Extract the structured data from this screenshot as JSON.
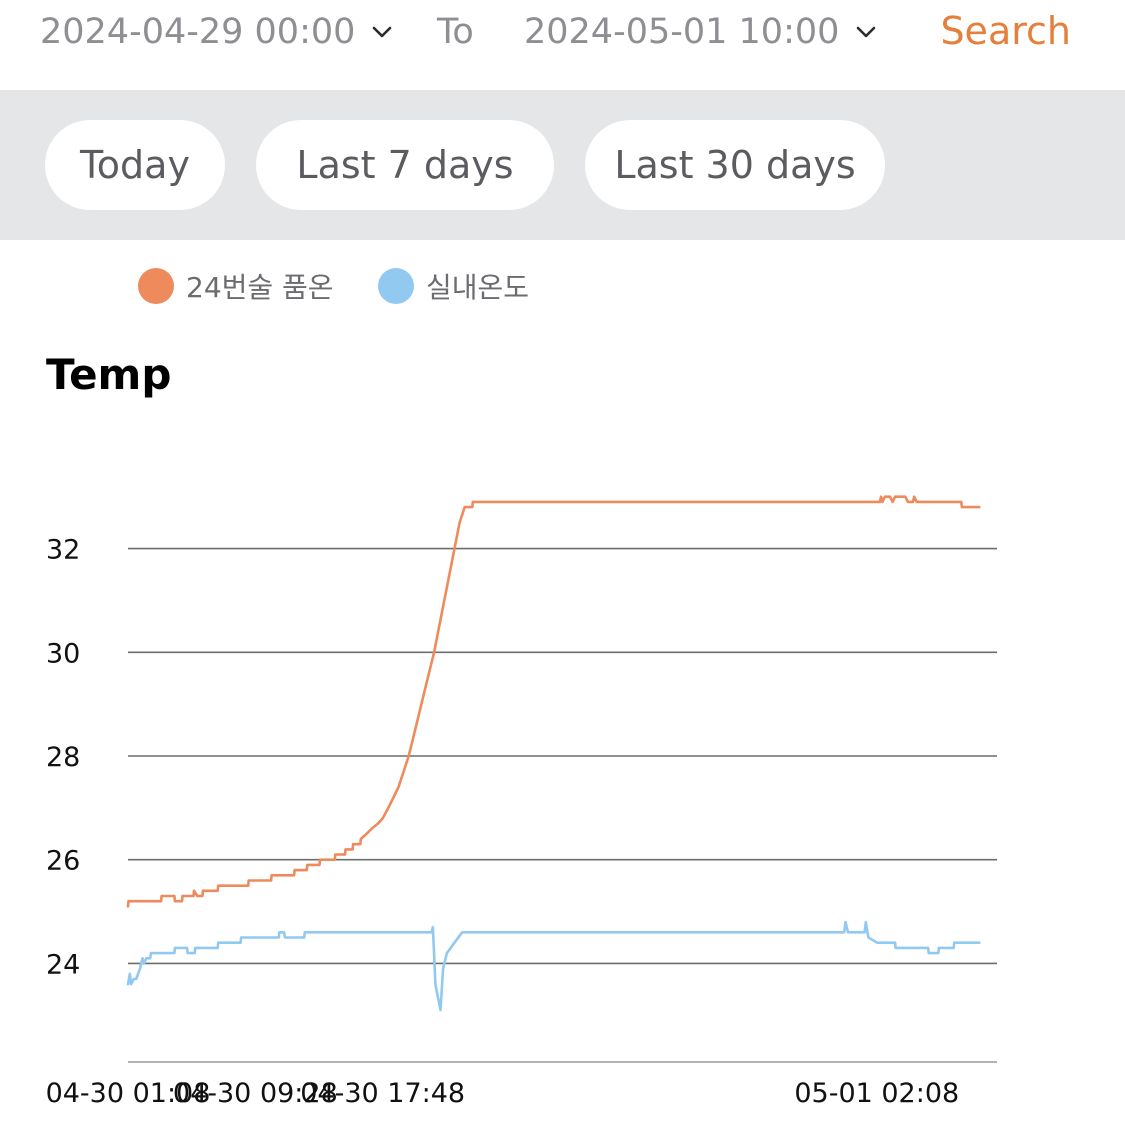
{
  "filter": {
    "start_date": "2024-04-29 00:00",
    "to_label": "To",
    "end_date": "2024-05-01 10:00",
    "search_label": "Search",
    "chevron_icon": "chevron-down-icon",
    "accent_color": "#e57f3c"
  },
  "range_buttons": [
    {
      "label": "Today"
    },
    {
      "label": "Last 7 days"
    },
    {
      "label": "Last 30 days"
    }
  ],
  "chart_data": {
    "type": "line",
    "title": "Temp",
    "xlabel": "",
    "ylabel": "",
    "ylim": [
      22.1,
      33.9
    ],
    "yticks": [
      24,
      26,
      28,
      30,
      32
    ],
    "x_range": [
      "2024-04-30 01:08",
      "2024-05-01 10:00"
    ],
    "xticks": [
      "04-30 01:08",
      "04-30 09:28",
      "04-30 17:48",
      "05-01 02:08"
    ],
    "grid": true,
    "legend_position": "top-left",
    "series": [
      {
        "name": "24번술 품온",
        "color": "#ee8a5c",
        "points": [
          [
            "04-30 01:08",
            25.1
          ],
          [
            "04-30 01:10",
            25.2
          ],
          [
            "04-30 03:18",
            25.2
          ],
          [
            "04-30 03:20",
            25.3
          ],
          [
            "04-30 04:10",
            25.3
          ],
          [
            "04-30 04:12",
            25.2
          ],
          [
            "04-30 04:40",
            25.2
          ],
          [
            "04-30 04:42",
            25.3
          ],
          [
            "04-30 05:25",
            25.3
          ],
          [
            "04-30 05:27",
            25.4
          ],
          [
            "04-30 05:40",
            25.3
          ],
          [
            "04-30 06:00",
            25.3
          ],
          [
            "04-30 06:02",
            25.4
          ],
          [
            "04-30 07:00",
            25.4
          ],
          [
            "04-30 07:02",
            25.5
          ],
          [
            "04-30 09:00",
            25.5
          ],
          [
            "04-30 09:02",
            25.6
          ],
          [
            "04-30 10:30",
            25.6
          ],
          [
            "04-30 10:32",
            25.7
          ],
          [
            "04-30 12:00",
            25.7
          ],
          [
            "04-30 12:02",
            25.8
          ],
          [
            "04-30 12:50",
            25.8
          ],
          [
            "04-30 12:52",
            25.9
          ],
          [
            "04-30 13:40",
            25.9
          ],
          [
            "04-30 13:42",
            26.0
          ],
          [
            "04-30 14:40",
            26.0
          ],
          [
            "04-30 14:42",
            26.1
          ],
          [
            "04-30 15:20",
            26.1
          ],
          [
            "04-30 15:22",
            26.2
          ],
          [
            "04-30 15:50",
            26.2
          ],
          [
            "04-30 15:52",
            26.3
          ],
          [
            "04-30 16:20",
            26.3
          ],
          [
            "04-30 16:22",
            26.4
          ],
          [
            "04-30 16:45",
            26.5
          ],
          [
            "04-30 17:05",
            26.6
          ],
          [
            "04-30 17:30",
            26.7
          ],
          [
            "04-30 17:48",
            26.8
          ],
          [
            "04-30 18:10",
            27.0
          ],
          [
            "04-30 18:30",
            27.2
          ],
          [
            "04-30 18:50",
            27.4
          ],
          [
            "04-30 19:10",
            27.7
          ],
          [
            "04-30 19:30",
            28.0
          ],
          [
            "04-30 19:50",
            28.4
          ],
          [
            "04-30 20:10",
            28.8
          ],
          [
            "04-30 20:30",
            29.2
          ],
          [
            "04-30 20:50",
            29.6
          ],
          [
            "04-30 21:10",
            30.0
          ],
          [
            "04-30 21:30",
            30.5
          ],
          [
            "04-30 21:50",
            31.0
          ],
          [
            "04-30 22:10",
            31.5
          ],
          [
            "04-30 22:30",
            32.0
          ],
          [
            "04-30 22:50",
            32.5
          ],
          [
            "04-30 23:10",
            32.8
          ],
          [
            "04-30 23:40",
            32.8
          ],
          [
            "04-30 23:42",
            32.9
          ],
          [
            "05-01 02:20",
            32.9
          ],
          [
            "05-01 02:25",
            33.0
          ],
          [
            "05-01 02:30",
            32.9
          ],
          [
            "05-01 02:40",
            33.0
          ],
          [
            "05-01 03:00",
            33.0
          ],
          [
            "05-01 03:10",
            32.9
          ],
          [
            "05-01 03:20",
            33.0
          ],
          [
            "05-01 04:00",
            33.0
          ],
          [
            "05-01 04:10",
            32.9
          ],
          [
            "05-01 04:30",
            32.9
          ],
          [
            "05-01 04:35",
            33.0
          ],
          [
            "05-01 04:45",
            32.9
          ],
          [
            "05-01 07:40",
            32.9
          ],
          [
            "05-01 07:42",
            32.8
          ],
          [
            "05-01 08:50",
            32.8
          ]
        ]
      },
      {
        "name": "실내온도",
        "color": "#92c9f0",
        "points": [
          [
            "04-30 01:08",
            23.6
          ],
          [
            "04-30 01:15",
            23.8
          ],
          [
            "04-30 01:20",
            23.6
          ],
          [
            "04-30 01:30",
            23.7
          ],
          [
            "04-30 01:40",
            23.7
          ],
          [
            "04-30 01:55",
            23.9
          ],
          [
            "04-30 02:05",
            24.1
          ],
          [
            "04-30 02:10",
            24.0
          ],
          [
            "04-30 02:20",
            24.1
          ],
          [
            "04-30 02:35",
            24.1
          ],
          [
            "04-30 02:38",
            24.2
          ],
          [
            "04-30 04:10",
            24.2
          ],
          [
            "04-30 04:12",
            24.3
          ],
          [
            "04-30 05:00",
            24.3
          ],
          [
            "04-30 05:02",
            24.2
          ],
          [
            "04-30 05:30",
            24.2
          ],
          [
            "04-30 05:32",
            24.3
          ],
          [
            "04-30 07:00",
            24.3
          ],
          [
            "04-30 07:02",
            24.4
          ],
          [
            "04-30 08:30",
            24.4
          ],
          [
            "04-30 08:32",
            24.5
          ],
          [
            "04-30 09:00",
            24.5
          ],
          [
            "04-30 11:00",
            24.5
          ],
          [
            "04-30 11:02",
            24.6
          ],
          [
            "04-30 11:20",
            24.6
          ],
          [
            "04-30 11:25",
            24.5
          ],
          [
            "04-30 12:40",
            24.5
          ],
          [
            "04-30 12:42",
            24.6
          ],
          [
            "04-30 21:00",
            24.6
          ],
          [
            "04-30 21:05",
            24.7
          ],
          [
            "04-30 21:15",
            23.6
          ],
          [
            "04-30 21:35",
            23.1
          ],
          [
            "04-30 21:45",
            23.9
          ],
          [
            "04-30 22:00",
            24.2
          ],
          [
            "04-30 22:30",
            24.4
          ],
          [
            "04-30 23:00",
            24.6
          ],
          [
            "05-01 00:00",
            24.6
          ],
          [
            "05-01 00:05",
            24.8
          ],
          [
            "05-01 00:15",
            24.6
          ],
          [
            "05-01 01:20",
            24.6
          ],
          [
            "05-01 01:25",
            24.8
          ],
          [
            "05-01 01:35",
            24.5
          ],
          [
            "05-01 02:10",
            24.4
          ],
          [
            "05-01 03:20",
            24.4
          ],
          [
            "05-01 03:22",
            24.3
          ],
          [
            "05-01 05:30",
            24.3
          ],
          [
            "05-01 05:32",
            24.2
          ],
          [
            "05-01 06:10",
            24.2
          ],
          [
            "05-01 06:12",
            24.3
          ],
          [
            "05-01 07:10",
            24.3
          ],
          [
            "05-01 07:12",
            24.4
          ],
          [
            "05-01 08:50",
            24.4
          ]
        ]
      }
    ]
  }
}
